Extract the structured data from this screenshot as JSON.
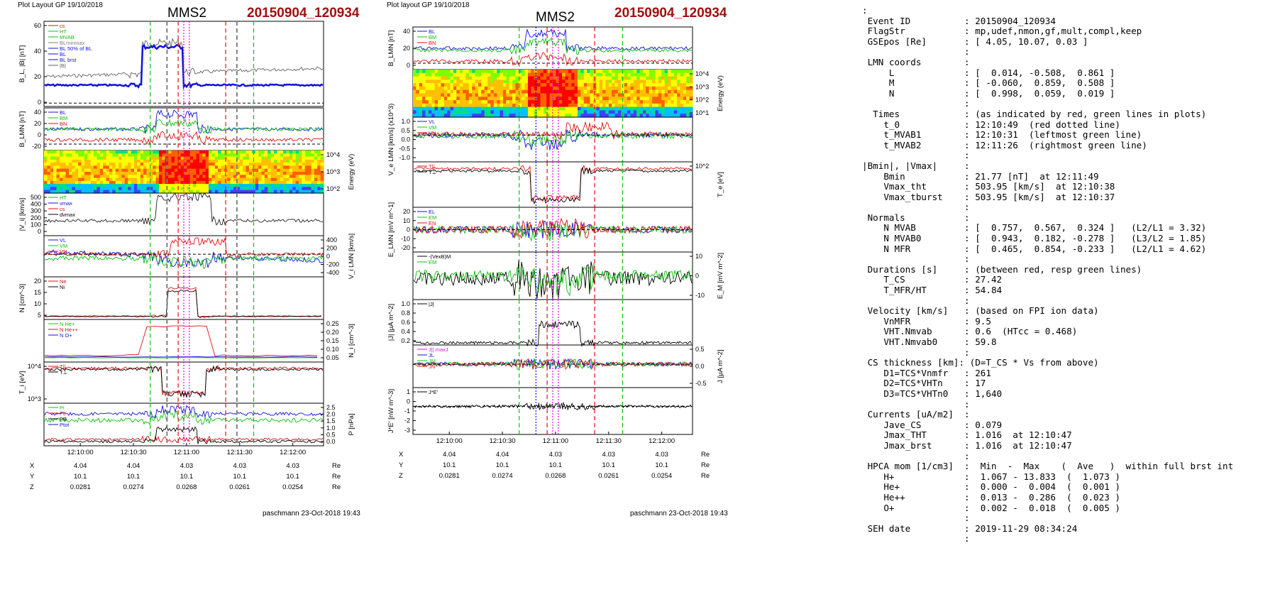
{
  "left_plot": {
    "header_left": "Plot Layout GP 19/10/2018",
    "title": "MMS2",
    "event": "20150904_120934",
    "footer": "paschmann 23-Oct-2018 19:43",
    "time_ticks": [
      "12:10:00",
      "12:10:30",
      "12:11:00",
      "12:11:30",
      "12:12:00"
    ],
    "pos_rows": [
      {
        "label": "X",
        "values": [
          "4.04",
          "4.04",
          "4.03",
          "4.03",
          "4.03"
        ],
        "unit": "Re"
      },
      {
        "label": "Y",
        "values": [
          "10.1",
          "10.1",
          "10.1",
          "10.1",
          "10.1"
        ],
        "unit": "Re"
      },
      {
        "label": "Z",
        "values": [
          "0.0281",
          "0.0274",
          "0.0268",
          "0.0261",
          "0.0254"
        ],
        "unit": "Re"
      }
    ],
    "panels": [
      {
        "ylabel": "B_L, |B| [nT]",
        "ticks": [
          "60",
          "40",
          "20",
          "0"
        ],
        "legend": [
          "cs",
          "HT",
          "MVAB",
          "BLminmax",
          "BL 50% of BL",
          "BL",
          "BL brst",
          "|B|"
        ]
      },
      {
        "ylabel": "B_LMN [nT]",
        "ticks": [
          "40",
          "20",
          "0",
          "-20"
        ],
        "legend": [
          "BL",
          "BM",
          "BN"
        ]
      },
      {
        "ylabel": "Energy (eV)",
        "ticks": [
          "10^4",
          "10^3",
          "10^2"
        ],
        "legend": []
      },
      {
        "ylabel": "|V_i| [km/s]",
        "ticks": [
          "500",
          "400",
          "300",
          "200",
          "100",
          "0"
        ],
        "legend": [
          "HT",
          "vmax",
          "cs",
          "dvmax"
        ]
      },
      {
        "ylabel": "V_i LMN [km/s]",
        "ticks": [
          "400",
          "200",
          "0",
          "-200",
          "-400"
        ],
        "legend": [
          "VL",
          "VM",
          "VN"
        ]
      },
      {
        "ylabel": "N [cm^-3]",
        "ticks": [
          "20",
          "15",
          "10",
          "5"
        ],
        "legend": [
          "Ne",
          "Ni"
        ]
      },
      {
        "ylabel": "N_i [cm^-3]",
        "ticks": [
          "0.25",
          "0.20",
          "0.15",
          "0.10",
          "0.05"
        ],
        "legend": [
          "N He+",
          "N He++",
          "N O+"
        ]
      },
      {
        "ylabel": "T_i [eV]",
        "ticks": [
          "10^4",
          "10^3"
        ],
        "legend": [
          "T||",
          "T⊥"
        ]
      },
      {
        "ylabel": "P [nPa]",
        "ticks": [
          "2.5",
          "2.0",
          "1.5",
          "1.0",
          "0.5",
          "0.0"
        ],
        "legend": [
          "Pi",
          "Pe",
          "PB",
          "Ptot"
        ]
      }
    ]
  },
  "mid_plot": {
    "header_left": "Plot layout GP 19/10/2018",
    "title": "MMS2",
    "event": "20150904_120934",
    "footer": "paschmann 23-Oct-2018 19:43",
    "time_ticks": [
      "12:10:00",
      "12:10:30",
      "12:11:00",
      "12:11:30",
      "12:12:00"
    ],
    "pos_rows": [
      {
        "label": "X",
        "values": [
          "4.04",
          "4.04",
          "4.03",
          "4.03",
          "4.03"
        ],
        "unit": "Re"
      },
      {
        "label": "Y",
        "values": [
          "10.1",
          "10.1",
          "10.1",
          "10.1",
          "10.1"
        ],
        "unit": "Re"
      },
      {
        "label": "Z",
        "values": [
          "0.0281",
          "0.0274",
          "0.0268",
          "0.0261",
          "0.0254"
        ],
        "unit": "Re"
      }
    ],
    "panels": [
      {
        "ylabel": "B_LMN [nT]",
        "ticks": [
          "40",
          "20",
          "0"
        ],
        "legend": [
          "BL",
          "BM",
          "BN"
        ]
      },
      {
        "ylabel": "Energy (eV)",
        "ticks": [
          "10^4",
          "10^3",
          "10^2",
          "10^1"
        ],
        "legend": []
      },
      {
        "ylabel": "V_e LMN [km/s] (x10^3)",
        "ticks": [
          "1.0",
          "0.5",
          "0.0",
          "-0.5",
          "-1.0"
        ],
        "legend": [
          "VL",
          "VM",
          "VN"
        ]
      },
      {
        "ylabel": "T_e [eV]",
        "ticks": [
          "10^2"
        ],
        "legend": [
          "T||",
          "T⊥"
        ]
      },
      {
        "ylabel": "E_LMN [mV m^-1]",
        "ticks": [
          "20",
          "10",
          "0",
          "-10",
          "-20"
        ],
        "legend": [
          "EL",
          "EM",
          "EN"
        ]
      },
      {
        "ylabel": "E_M [mV m^-2]",
        "ticks": [
          "10",
          "0",
          "-10"
        ],
        "legend": [
          "-(VexB)M",
          "EM"
        ]
      },
      {
        "ylabel": "|J| [µA m^-2]",
        "ticks": [
          "1.0",
          "0.8",
          "0.6",
          "0.4",
          "0.2"
        ],
        "legend": [
          "|J|"
        ]
      },
      {
        "ylabel": "J [µA m^-2]",
        "ticks": [
          "0.5",
          "0.0",
          "-0.5"
        ],
        "legend": [
          "J|| maxJ",
          "JL",
          "JM",
          "JN"
        ]
      },
      {
        "ylabel": "J*E' [nW m^-3]",
        "ticks": [
          "1",
          "0",
          "-1",
          "-2",
          "-3"
        ],
        "legend": [
          "J*E'"
        ]
      }
    ]
  },
  "info": {
    "lines": [
      ":",
      " Event ID          : 20150904_120934",
      " FlagStr           : mp,udef,nmon,gf,mult,compl,keep",
      " GSEpos [Re]       : [ 4.05, 10.07, 0.03 ]",
      "                   :",
      " LMN coords        :",
      "     L             : [  0.014, -0.508,  0.861 ]",
      "     M             : [ -0.060,  0.859,  0.508 ]",
      "     N             : [  0.998,  0.059,  0.019 ]",
      "                   :",
      "  Times            : (as indicated by red, green lines in plots)",
      "    t_0            : 12:10:49  (red dotted line)",
      "    t_MVAB1        : 12:10:31  (leftmost green line)",
      "    t_MVAB2        : 12:11:26  (rightmost green line)",
      "                   :",
      "|Bmin|, |Vmax|     :",
      "    Bmin           : 21.77 [nT]  at 12:11:49",
      "    Vmax_tht       : 503.95 [km/s]  at 12:10:38",
      "    Vmax_tburst    : 503.95 [km/s]  at 12:10:37",
      "                   :",
      " Normals           :",
      "    N MVAB         : [  0.757,  0.567,  0.324 ]   (L2/L1 = 3.32)",
      "    N MVAB0        : [  0.943,  0.182, -0.278 ]   (L3/L2 = 1.85)",
      "    N MFR          : [  0.465,  0.854, -0.233 ]   (L2/L1 = 4.62)",
      "                   :",
      " Durations [s]     : (between red, resp green lines)",
      "    T_CS           : 27.42",
      "    T_MFR/HT       : 54.84",
      "                   :",
      " Velocity [km/s]   : (based on FPI ion data)",
      "    VnMFR          : 9.5",
      "    VHT.Nmvab      : 0.6  (HTcc = 0.468)",
      "    VHT.Nmvab0     : 59.8",
      "                   :",
      " CS thickness [km]: (D=T_CS * Vs from above)",
      "    D1=TCS*Vnmfr   : 261",
      "    D2=TCS*VHTn    : 17",
      "    D3=TCS*VHTn0   : 1,640",
      "                   :",
      " Currents [uA/m2]  :",
      "    Jave_CS        : 0.079",
      "    Jmax_THT       : 1.016  at 12:10:47",
      "    Jmax_brst      : 1.016  at 12:10:47",
      "                   :",
      " HPCA mom [1/cm3]  :  Min  -  Max    (  Ave   )  within full brst int",
      "    H+             :  1.067 - 13.833  (  1.073 )",
      "    He+            :  0.000 -  0.004  (  0.001 )",
      "    He++           :  0.013 -  0.286  (  0.023 )",
      "    O+             :  0.002 -  0.018  (  0.005 )",
      "                   :",
      " SEH date          : 2019-11-29 08:34:24",
      "                   :"
    ]
  },
  "colors": {
    "event_red": "#a01010",
    "blue": "#1010e0",
    "green": "#10c010",
    "red": "#e01010",
    "magenta": "#e010e0",
    "gray": "#808080"
  }
}
